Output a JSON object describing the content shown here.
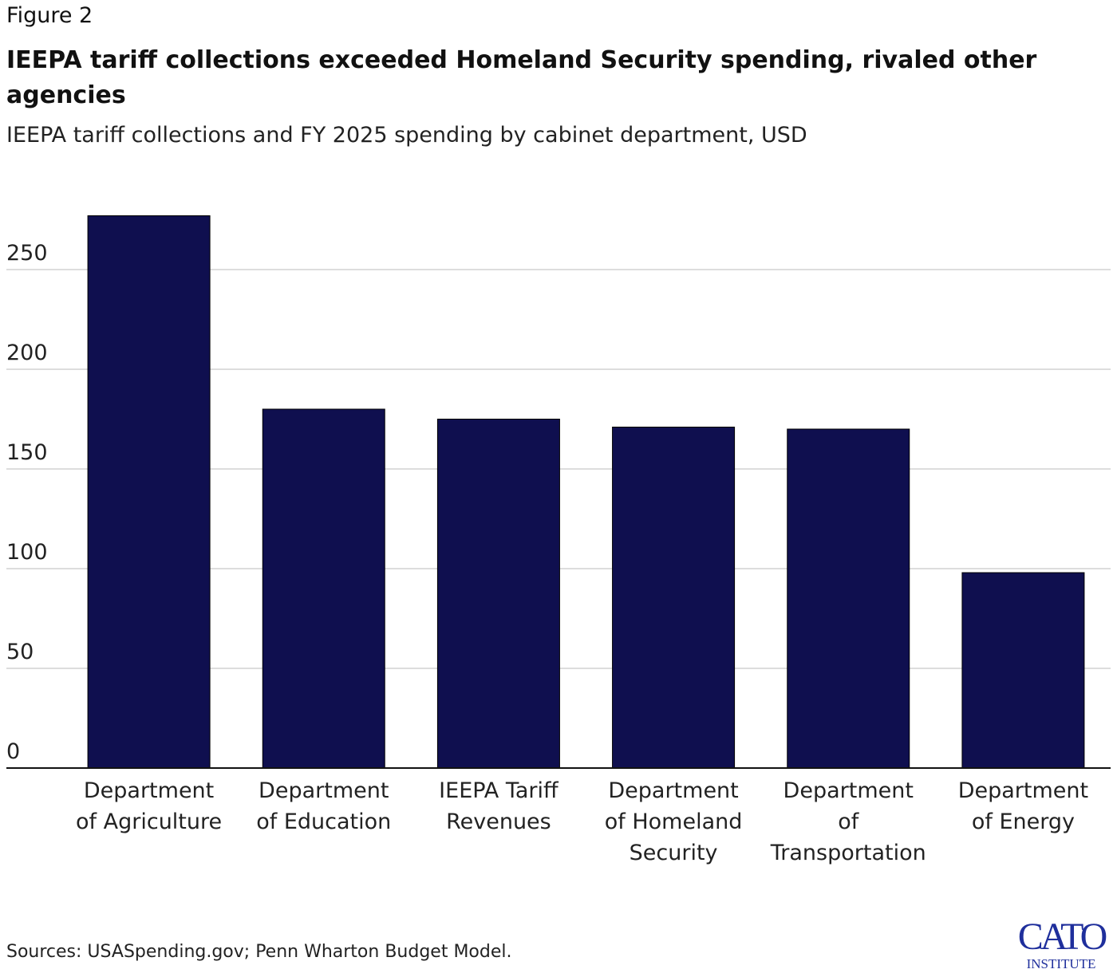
{
  "figure_label": "Figure 2",
  "title": "IEEPA tariff collections exceeded Homeland Security spending, rivaled other agencies",
  "subtitle": "IEEPA tariff collections and FY 2025 spending by cabinet department, USD",
  "source": "Sources: USASpending.gov; Penn Wharton Budget Model.",
  "logo": {
    "text": "CATO",
    "subtext": "INSTITUTE",
    "color": "#1f2f9c"
  },
  "chart_data": {
    "type": "bar",
    "title": "IEEPA tariff collections exceeded Homeland Security spending, rivaled other agencies",
    "subtitle": "IEEPA tariff collections and FY 2025 spending by cabinet department, USD",
    "categories": [
      [
        "Department",
        "of Agriculture"
      ],
      [
        "Department",
        "of Education"
      ],
      [
        "IEEPA Tariff",
        "Revenues"
      ],
      [
        "Department",
        "of Homeland",
        "Security"
      ],
      [
        "Department",
        "of",
        "Transportation"
      ],
      [
        "Department",
        "of Energy"
      ]
    ],
    "values": [
      277,
      180,
      175,
      171,
      170,
      98
    ],
    "ylim": [
      0,
      280
    ],
    "yticks": [
      0,
      50,
      100,
      150,
      200,
      250
    ],
    "xlabel": "",
    "ylabel": "",
    "grid": true,
    "bar_color": "#0f0f4f"
  }
}
